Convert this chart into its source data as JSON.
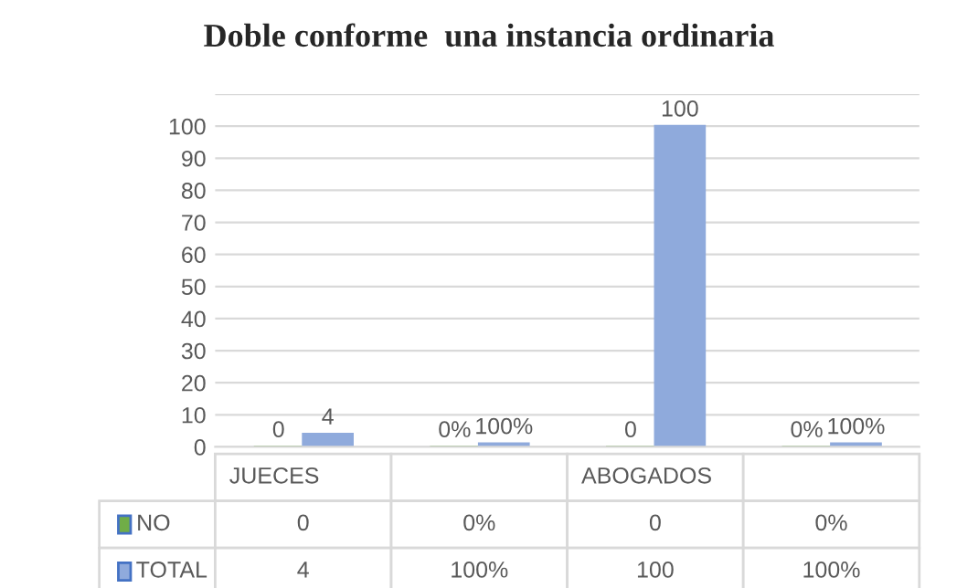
{
  "chart_data": {
    "type": "bar",
    "title": "Doble conforme  una instancia ordinaria",
    "categories": [
      "JUECES",
      null,
      "ABOGADOS",
      null
    ],
    "series": [
      {
        "name": "NO",
        "color": "#70ad47",
        "values": [
          0,
          0,
          0,
          0
        ],
        "value_labels": [
          "0",
          "0%",
          "0",
          "0%"
        ]
      },
      {
        "name": "TOTAL",
        "color": "#8faadc",
        "values": [
          4,
          1,
          100,
          1
        ],
        "value_labels": [
          "4",
          "100%",
          "100",
          "100%"
        ]
      }
    ],
    "ylim": [
      0,
      110
    ],
    "yticks": [
      0,
      10,
      20,
      30,
      40,
      50,
      60,
      70,
      80,
      90,
      100,
      {
        "value": 110,
        "label": null
      }
    ],
    "grid": "y",
    "legend": "bottom"
  }
}
